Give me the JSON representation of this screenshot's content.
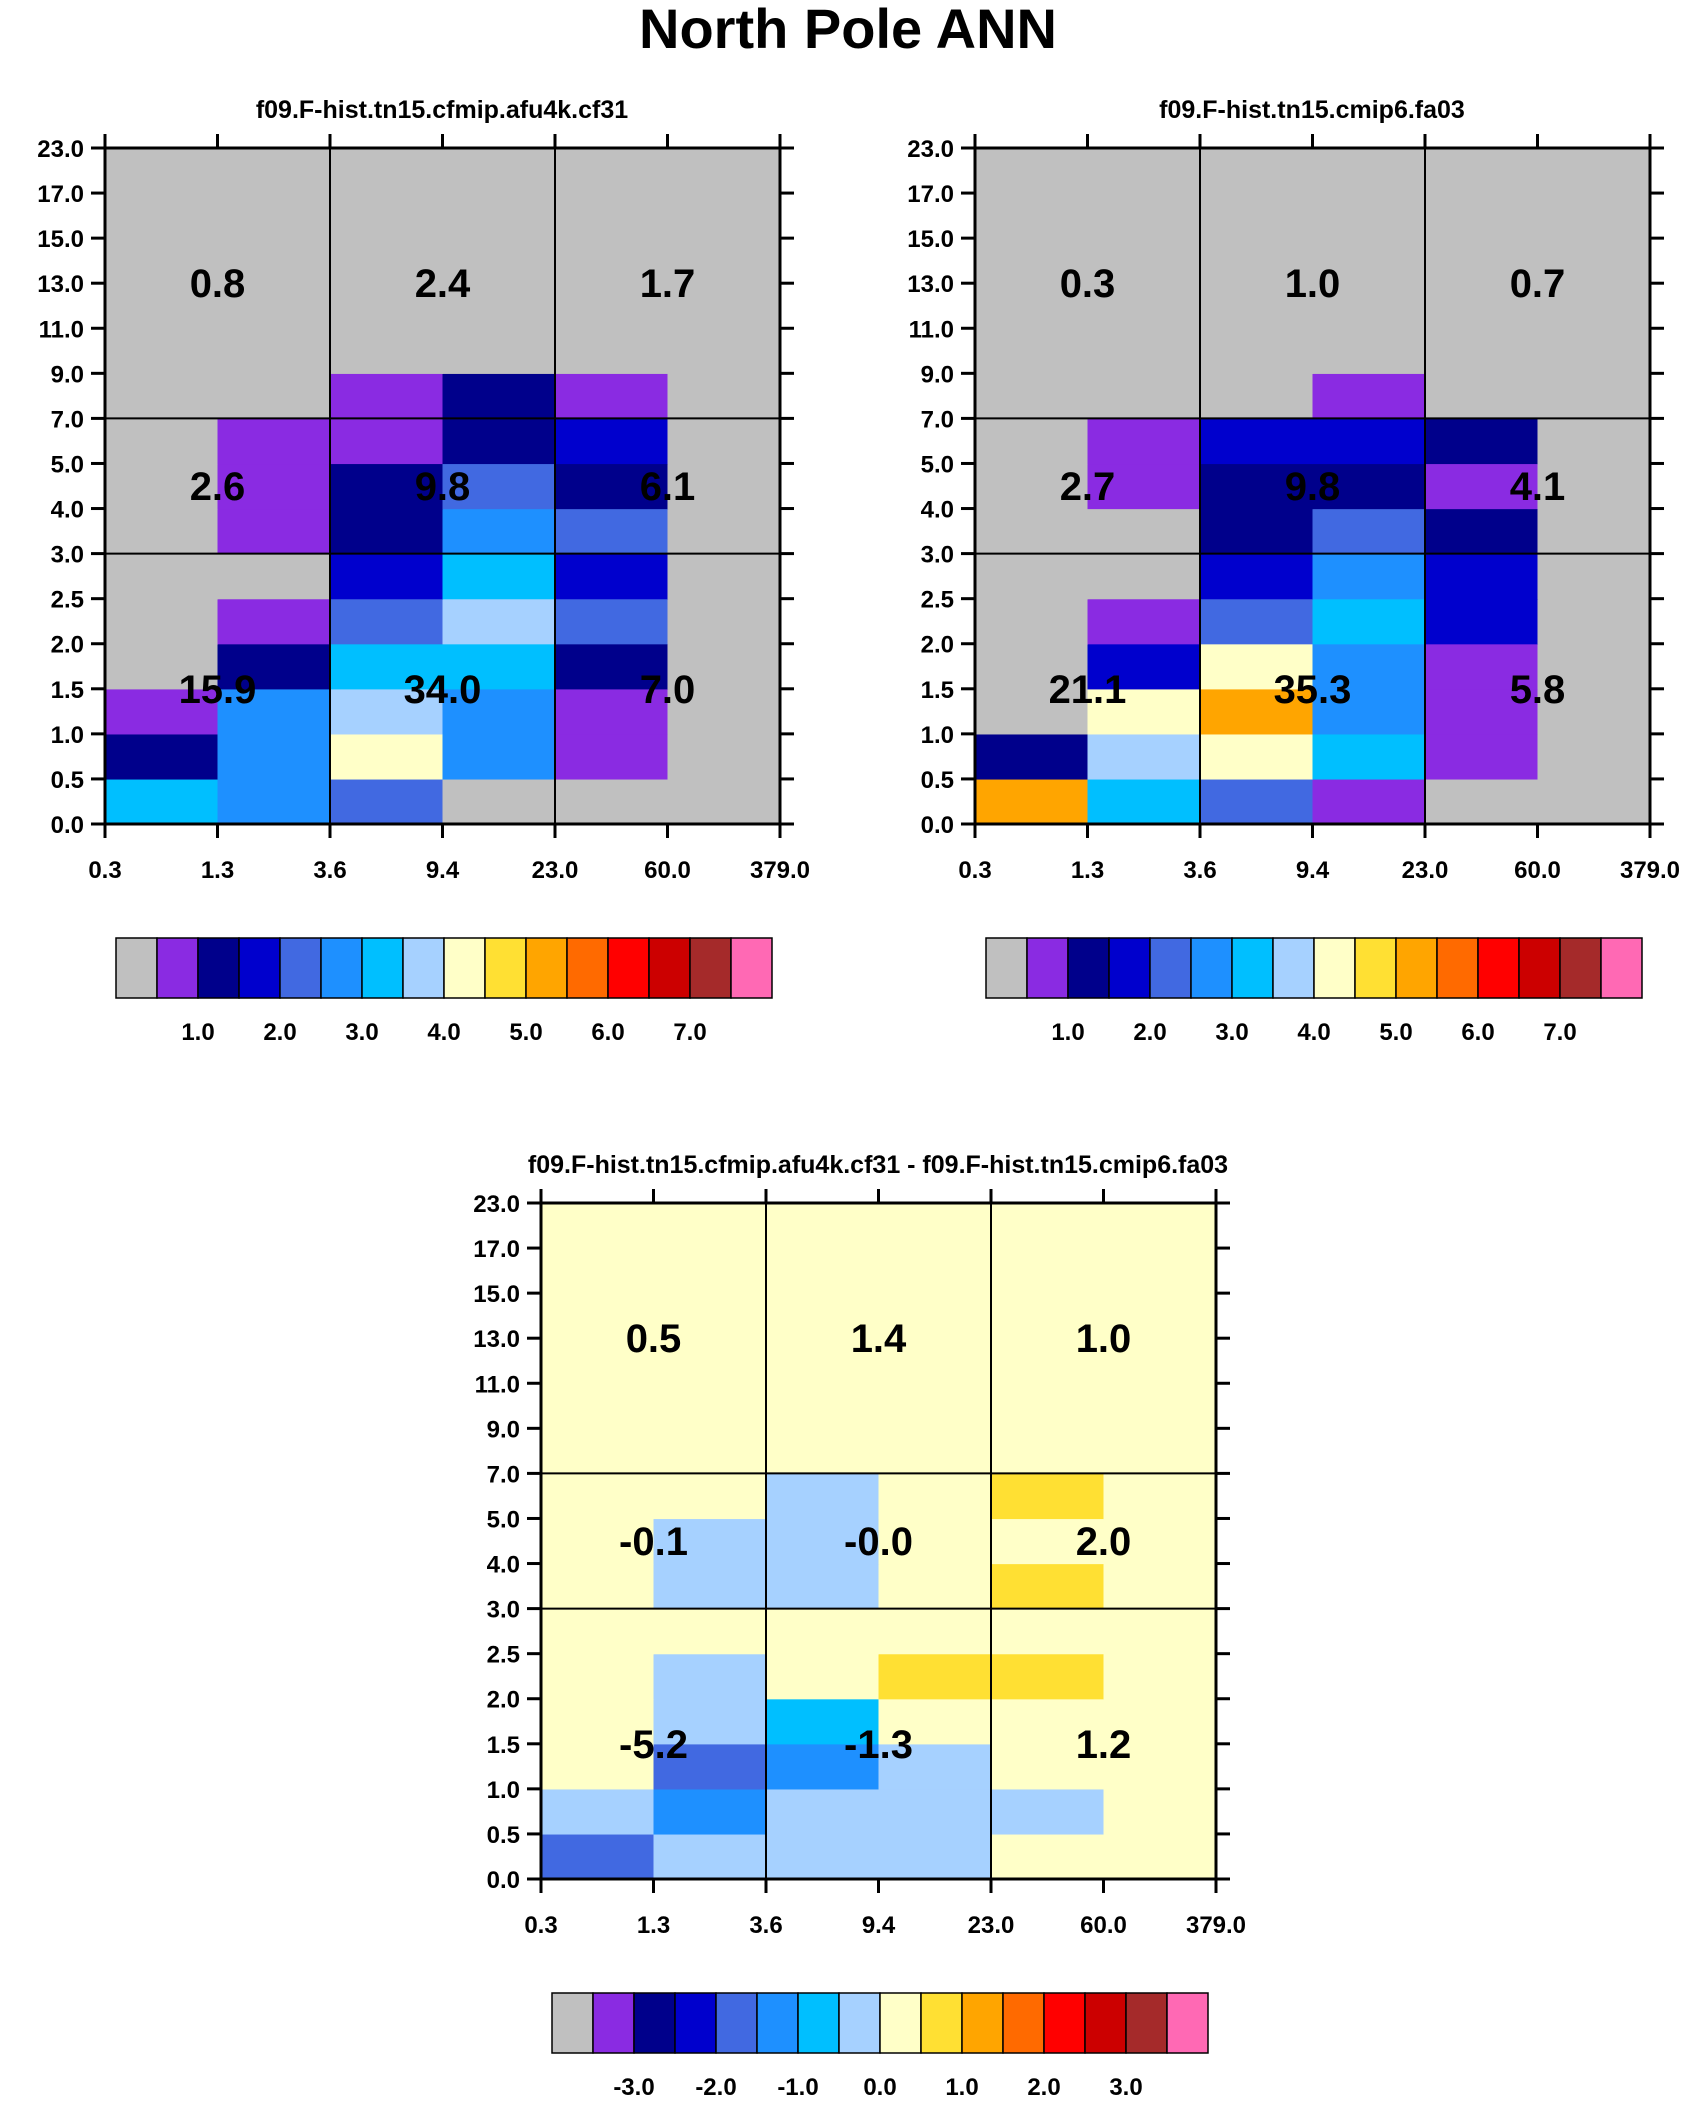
{
  "title": "North Pole ANN",
  "x_tick_labels": [
    "0.3",
    "1.3",
    "3.6",
    "9.4",
    "23.0",
    "60.0",
    "379.0"
  ],
  "y_tick_labels": [
    "0.0",
    "0.5",
    "1.0",
    "1.5",
    "2.0",
    "2.5",
    "3.0",
    "4.0",
    "5.0",
    "7.0",
    "9.0",
    "11.0",
    "13.0",
    "15.0",
    "17.0",
    "23.0"
  ],
  "chart_data": [
    {
      "type": "heatmap",
      "title": "f09.F-hist.tn15.cfmip.afu4k.cf31",
      "x_bins": [
        "0.3",
        "1.3",
        "3.6",
        "9.4",
        "23.0",
        "60.0",
        "379.0"
      ],
      "y_bins": [
        "0.0",
        "0.5",
        "1.0",
        "1.5",
        "2.0",
        "2.5",
        "3.0",
        "4.0",
        "5.0",
        "7.0",
        "9.0",
        "11.0",
        "13.0",
        "15.0",
        "17.0",
        "23.0"
      ],
      "cell_color_index": [
        [
          6,
          5,
          4,
          0,
          0,
          0
        ],
        [
          2,
          5,
          8,
          5,
          1,
          0
        ],
        [
          1,
          5,
          7,
          5,
          1,
          0
        ],
        [
          0,
          2,
          6,
          6,
          2,
          0
        ],
        [
          0,
          1,
          4,
          7,
          4,
          0
        ],
        [
          0,
          0,
          3,
          6,
          3,
          0
        ],
        [
          0,
          1,
          2,
          5,
          4,
          0
        ],
        [
          0,
          1,
          2,
          4,
          2,
          0
        ],
        [
          0,
          1,
          1,
          2,
          3,
          0
        ],
        [
          0,
          0,
          1,
          2,
          1,
          0
        ],
        [
          0,
          0,
          0,
          0,
          0,
          0
        ],
        [
          0,
          0,
          0,
          0,
          0,
          0
        ],
        [
          0,
          0,
          0,
          0,
          0,
          0
        ],
        [
          0,
          0,
          0,
          0,
          0,
          0
        ],
        [
          0,
          0,
          0,
          0,
          0,
          0
        ]
      ],
      "region_values": {
        "high": [
          "0.8",
          "2.4",
          "1.7"
        ],
        "mid": [
          "2.6",
          "9.8",
          "6.1"
        ],
        "low": [
          "15.9",
          "34.0",
          "7.0"
        ]
      },
      "colorbar_labels": [
        "1.0",
        "2.0",
        "3.0",
        "4.0",
        "5.0",
        "6.0",
        "7.0"
      ]
    },
    {
      "type": "heatmap",
      "title": "f09.F-hist.tn15.cmip6.fa03",
      "x_bins": [
        "0.3",
        "1.3",
        "3.6",
        "9.4",
        "23.0",
        "60.0",
        "379.0"
      ],
      "y_bins": [
        "0.0",
        "0.5",
        "1.0",
        "1.5",
        "2.0",
        "2.5",
        "3.0",
        "4.0",
        "5.0",
        "7.0",
        "9.0",
        "11.0",
        "13.0",
        "15.0",
        "17.0",
        "23.0"
      ],
      "cell_color_index": [
        [
          10,
          6,
          4,
          1,
          0,
          0
        ],
        [
          2,
          7,
          8,
          6,
          1,
          0
        ],
        [
          0,
          8,
          10,
          5,
          1,
          0
        ],
        [
          0,
          3,
          8,
          5,
          1,
          0
        ],
        [
          0,
          1,
          4,
          6,
          3,
          0
        ],
        [
          0,
          0,
          3,
          5,
          3,
          0
        ],
        [
          0,
          0,
          2,
          4,
          2,
          0
        ],
        [
          0,
          1,
          2,
          2,
          1,
          0
        ],
        [
          0,
          1,
          3,
          3,
          2,
          0
        ],
        [
          0,
          0,
          0,
          1,
          0,
          0
        ],
        [
          0,
          0,
          0,
          0,
          0,
          0
        ],
        [
          0,
          0,
          0,
          0,
          0,
          0
        ],
        [
          0,
          0,
          0,
          0,
          0,
          0
        ],
        [
          0,
          0,
          0,
          0,
          0,
          0
        ],
        [
          0,
          0,
          0,
          0,
          0,
          0
        ]
      ],
      "region_values": {
        "high": [
          "0.3",
          "1.0",
          "0.7"
        ],
        "mid": [
          "2.7",
          "9.8",
          "4.1"
        ],
        "low": [
          "21.1",
          "35.3",
          "5.8"
        ]
      },
      "colorbar_labels": [
        "1.0",
        "2.0",
        "3.0",
        "4.0",
        "5.0",
        "6.0",
        "7.0"
      ]
    },
    {
      "type": "heatmap",
      "title": "f09.F-hist.tn15.cfmip.afu4k.cf31 - f09.F-hist.tn15.cmip6.fa03",
      "x_bins": [
        "0.3",
        "1.3",
        "3.6",
        "9.4",
        "23.0",
        "60.0",
        "379.0"
      ],
      "y_bins": [
        "0.0",
        "0.5",
        "1.0",
        "1.5",
        "2.0",
        "2.5",
        "3.0",
        "4.0",
        "5.0",
        "7.0",
        "9.0",
        "11.0",
        "13.0",
        "15.0",
        "17.0",
        "23.0"
      ],
      "cell_color_index": [
        [
          4,
          7,
          7,
          7,
          8,
          8
        ],
        [
          7,
          5,
          7,
          7,
          7,
          8
        ],
        [
          8,
          4,
          5,
          7,
          8,
          8
        ],
        [
          8,
          7,
          6,
          8,
          8,
          8
        ],
        [
          8,
          7,
          8,
          9,
          9,
          8
        ],
        [
          8,
          8,
          8,
          8,
          8,
          8
        ],
        [
          8,
          7,
          7,
          8,
          9,
          8
        ],
        [
          8,
          7,
          7,
          8,
          8,
          8
        ],
        [
          8,
          8,
          7,
          8,
          9,
          8
        ],
        [
          8,
          8,
          8,
          8,
          8,
          8
        ],
        [
          8,
          8,
          8,
          8,
          8,
          8
        ],
        [
          8,
          8,
          8,
          8,
          8,
          8
        ],
        [
          8,
          8,
          8,
          8,
          8,
          8
        ],
        [
          8,
          8,
          8,
          8,
          8,
          8
        ],
        [
          8,
          8,
          8,
          8,
          8,
          8
        ]
      ],
      "region_values": {
        "high": [
          "0.5",
          "1.4",
          "1.0"
        ],
        "mid": [
          "-0.1",
          "-0.0",
          "2.0"
        ],
        "low": [
          "-5.2",
          "-1.3",
          "1.2"
        ]
      },
      "colorbar_labels": [
        "-3.0",
        "-2.0",
        "-1.0",
        "0.0",
        "1.0",
        "2.0",
        "3.0"
      ]
    }
  ],
  "palette": [
    "#c0c0c0",
    "#8a2be2",
    "#00008b",
    "#0000cd",
    "#4169e1",
    "#1e90ff",
    "#00bfff",
    "#a6d1ff",
    "#ffffc8",
    "#ffe033",
    "#ffa500",
    "#ff6a00",
    "#ff0000",
    "#cc0000",
    "#a52a2a",
    "#ff69b4"
  ]
}
